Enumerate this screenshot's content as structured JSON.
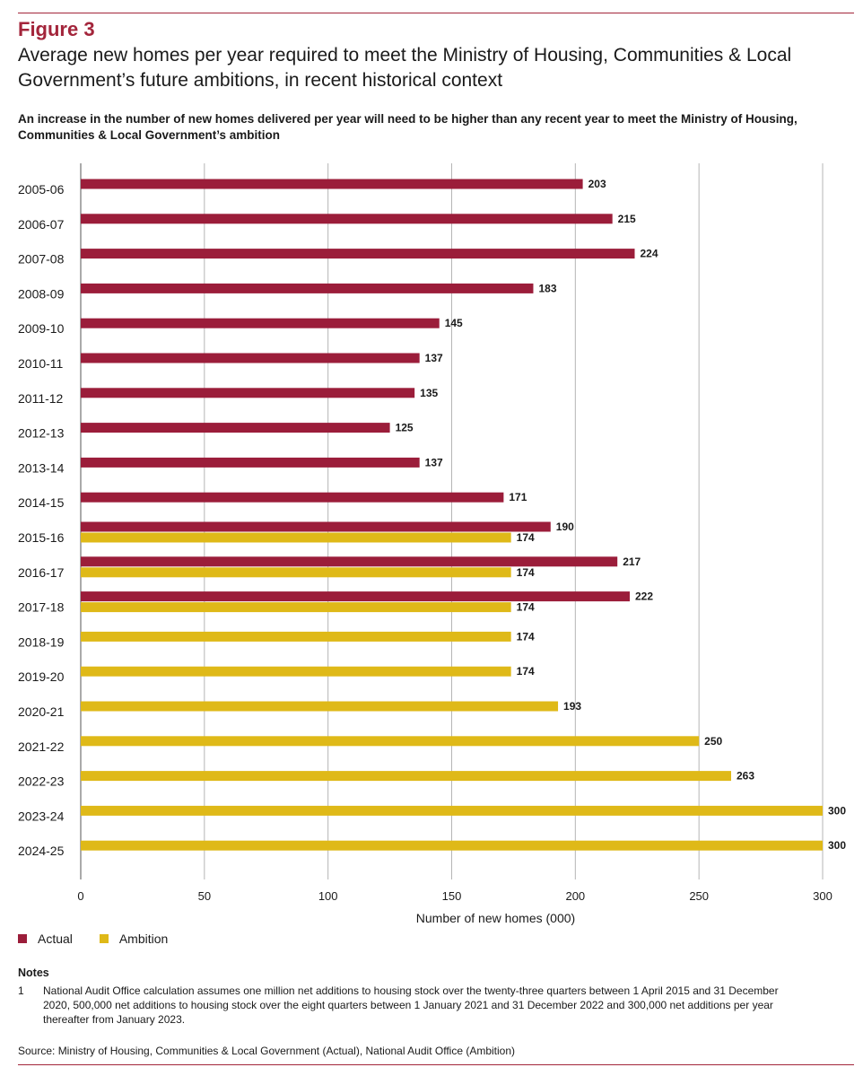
{
  "figure": {
    "label": "Figure 3",
    "title": "Average new homes per year required to meet the Ministry of Housing, Communities & Local Government’s future ambitions, in recent historical context",
    "subtitle": "An increase in the number of new homes delivered per year will need to be higher than any recent year to meet the Ministry of Housing, Communities & Local Government’s ambition"
  },
  "colors": {
    "actual": "#9b1d3a",
    "ambition": "#dfb918",
    "accent": "#a3253b"
  },
  "chart_data": {
    "type": "bar",
    "orientation": "horizontal",
    "categories": [
      "2005-06",
      "2006-07",
      "2007-08",
      "2008-09",
      "2009-10",
      "2010-11",
      "2011-12",
      "2012-13",
      "2013-14",
      "2014-15",
      "2015-16",
      "2016-17",
      "2017-18",
      "2018-19",
      "2019-20",
      "2020-21",
      "2021-22",
      "2022-23",
      "2023-24",
      "2024-25"
    ],
    "series": [
      {
        "name": "Actual",
        "values": [
          203,
          215,
          224,
          183,
          145,
          137,
          135,
          125,
          137,
          171,
          190,
          217,
          222,
          null,
          null,
          null,
          null,
          null,
          null,
          null
        ]
      },
      {
        "name": "Ambition",
        "values": [
          null,
          null,
          null,
          null,
          null,
          null,
          null,
          null,
          null,
          null,
          174,
          174,
          174,
          174,
          174,
          193,
          250,
          263,
          300,
          300
        ]
      }
    ],
    "xlabel": "Number of new homes (000)",
    "ylabel": "",
    "xlim": [
      0,
      300
    ],
    "xticks": [
      0,
      50,
      100,
      150,
      200,
      250,
      300
    ],
    "grid": "vertical"
  },
  "legend": {
    "actual": "Actual",
    "ambition": "Ambition"
  },
  "notes": {
    "heading": "Notes",
    "items": [
      {
        "number": "1",
        "text": "National Audit Office calculation assumes one million net additions to housing stock over the twenty-three quarters between 1 April 2015 and 31 December 2020, 500,000 net additions to housing stock over the eight quarters between 1 January 2021 and 31 December 2022 and 300,000 net additions per year thereafter from January 2023."
      }
    ]
  },
  "source": "Source: Ministry of Housing, Communities & Local Government (Actual), National Audit Office (Ambition)"
}
